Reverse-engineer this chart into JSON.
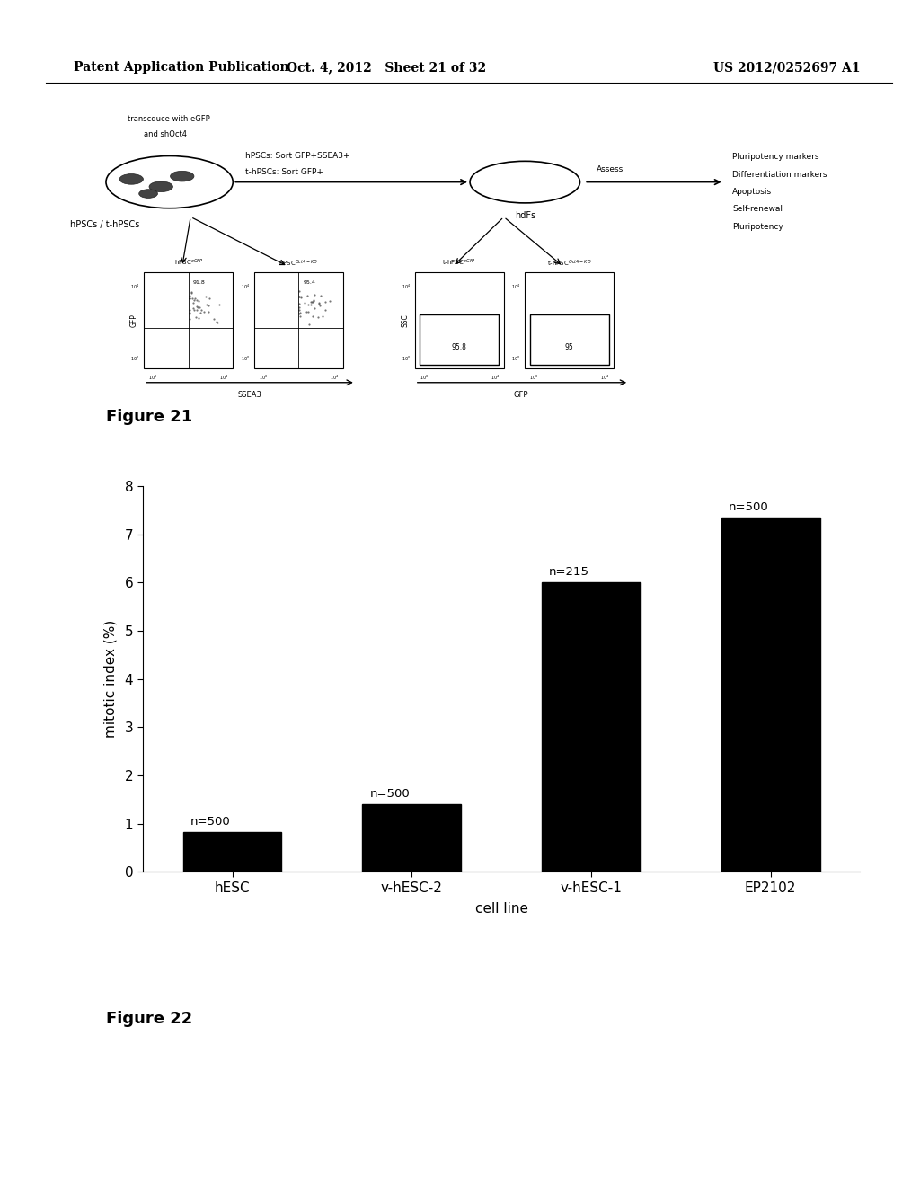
{
  "page_header_left": "Patent Application Publication",
  "page_header_center": "Oct. 4, 2012   Sheet 21 of 32",
  "page_header_right": "US 2012/0252697 A1",
  "figure21_label": "Figure 21",
  "figure22_label": "Figure 22",
  "bar_categories": [
    "hESC",
    "v-hESC-2",
    "v-hESC-1",
    "EP2102"
  ],
  "bar_values": [
    0.82,
    1.4,
    6.0,
    7.35
  ],
  "bar_annotations": [
    "n=500",
    "n=500",
    "n=215",
    "n=500"
  ],
  "bar_color": "#000000",
  "ylabel": "mitotic index (%)",
  "xlabel": "cell line",
  "ylim": [
    0,
    8
  ],
  "yticks": [
    0,
    1,
    2,
    3,
    4,
    5,
    6,
    7,
    8
  ],
  "background_color": "#ffffff",
  "fig_width": 10.24,
  "fig_height": 13.2,
  "dpi": 100
}
